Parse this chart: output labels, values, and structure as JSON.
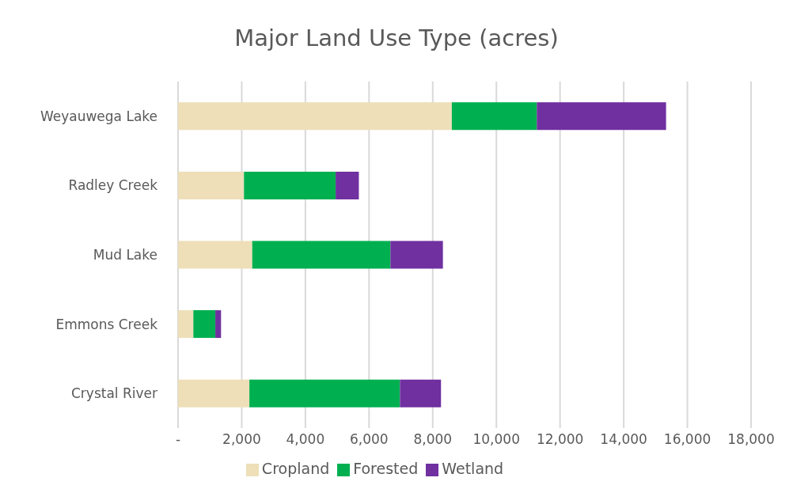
{
  "chart_data": {
    "type": "bar",
    "title": "Major Land Use Type (acres)",
    "orientation": "horizontal",
    "stacked": true,
    "categories": [
      "Weyauwega Lake",
      "Radley Creek",
      "Mud Lake",
      "Emmons Creek",
      "Crystal River"
    ],
    "series": [
      {
        "name": "Cropland",
        "color": "#eedfb8",
        "values": [
          8600,
          2070,
          2330,
          480,
          2240
        ]
      },
      {
        "name": "Forested",
        "color": "#00b050",
        "values": [
          2670,
          2880,
          4340,
          690,
          4730
        ]
      },
      {
        "name": "Wetland",
        "color": "#7030a0",
        "values": [
          4060,
          730,
          1650,
          180,
          1290
        ]
      }
    ],
    "xlim": [
      0,
      18000
    ],
    "xticks": [
      {
        "value": 0,
        "label": "-"
      },
      {
        "value": 2000,
        "label": "2,000"
      },
      {
        "value": 4000,
        "label": "4,000"
      },
      {
        "value": 6000,
        "label": "6,000"
      },
      {
        "value": 8000,
        "label": "8,000"
      },
      {
        "value": 10000,
        "label": "10,000"
      },
      {
        "value": 12000,
        "label": "12,000"
      },
      {
        "value": 14000,
        "label": "14,000"
      },
      {
        "value": 16000,
        "label": "16,000"
      },
      {
        "value": 18000,
        "label": "18,000"
      }
    ],
    "grid": "x",
    "legend": "bottom"
  }
}
